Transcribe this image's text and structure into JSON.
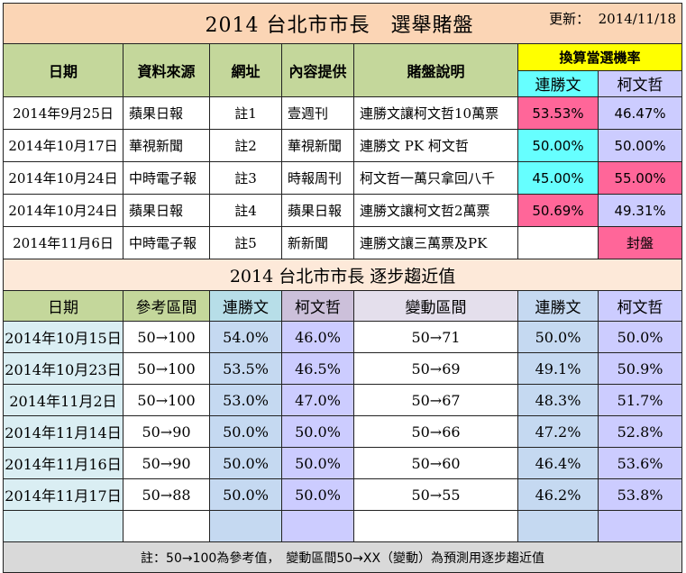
{
  "title": "2014 台北市市長　選舉賭盤",
  "update_label": "更新：",
  "update_date": "2014/11/18",
  "table1": {
    "headers": [
      "日期",
      "資料來源",
      "網址",
      "內容提供",
      "賭盤說明"
    ],
    "prob_header": "換算當選機率",
    "candidates": [
      "連勝文",
      "柯文哲"
    ],
    "rows": [
      {
        "date": "2014年9月25日",
        "source": "蘋果日報",
        "url": "註1",
        "provider": "壹週刊",
        "desc": "連勝文讓柯文哲10萬票",
        "lian": "53.53%",
        "ko": "46.47%"
      },
      {
        "date": "2014年10月17日",
        "source": "華視新聞",
        "url": "註2",
        "provider": "華視新聞",
        "desc": "連勝文 PK 柯文哲",
        "lian": "50.00%",
        "ko": "50.00%"
      },
      {
        "date": "2014年10月24日",
        "source": "中時電子報",
        "url": "註3",
        "provider": "時報周刊",
        "desc": "柯文哲一萬只拿回八千",
        "lian": "45.00%",
        "ko": "55.00%"
      },
      {
        "date": "2014年10月24日",
        "source": "蘋果日報",
        "url": "註4",
        "provider": "蘋果日報",
        "desc": "連勝文讓柯文哲2萬票",
        "lian": "50.69%",
        "ko": "49.31%"
      },
      {
        "date": "2014年11月6日",
        "source": "中時電子報",
        "url": "註5",
        "provider": "新新聞",
        "desc": "連勝文讓三萬票及PK",
        "lian": "",
        "ko": "封盤"
      }
    ]
  },
  "table2": {
    "title": "2014 台北市市長 逐步趨近值",
    "headers": [
      "日期",
      "參考區間",
      "連勝文",
      "柯文哲",
      "變動區間",
      "連勝文",
      "柯文哲"
    ],
    "rows": [
      {
        "date": "2014年10月15日",
        "ref": "50→100",
        "lian1": "54.0%",
        "ko1": "46.0%",
        "var": "50→71",
        "lian2": "50.0%",
        "ko2": "50.0%"
      },
      {
        "date": "2014年10月23日",
        "ref": "50→100",
        "lian1": "53.5%",
        "ko1": "46.5%",
        "var": "50→69",
        "lian2": "49.1%",
        "ko2": "50.9%"
      },
      {
        "date": "2014年11月2日",
        "ref": "50→100",
        "lian1": "53.0%",
        "ko1": "47.0%",
        "var": "50→67",
        "lian2": "48.3%",
        "ko2": "51.7%"
      },
      {
        "date": "2014年11月14日",
        "ref": "50→90",
        "lian1": "50.0%",
        "ko1": "50.0%",
        "var": "50→66",
        "lian2": "47.2%",
        "ko2": "52.8%"
      },
      {
        "date": "2014年11月16日",
        "ref": "50→90",
        "lian1": "50.0%",
        "ko1": "50.0%",
        "var": "50→60",
        "lian2": "46.4%",
        "ko2": "53.6%"
      },
      {
        "date": "2014年11月17日",
        "ref": "50→88",
        "lian1": "50.0%",
        "ko1": "50.0%",
        "var": "50→55",
        "lian2": "46.2%",
        "ko2": "53.8%"
      }
    ]
  },
  "note": "註：50→100為參考值，　變動區間50→XX（變動）為預測用逐步趨近值"
}
